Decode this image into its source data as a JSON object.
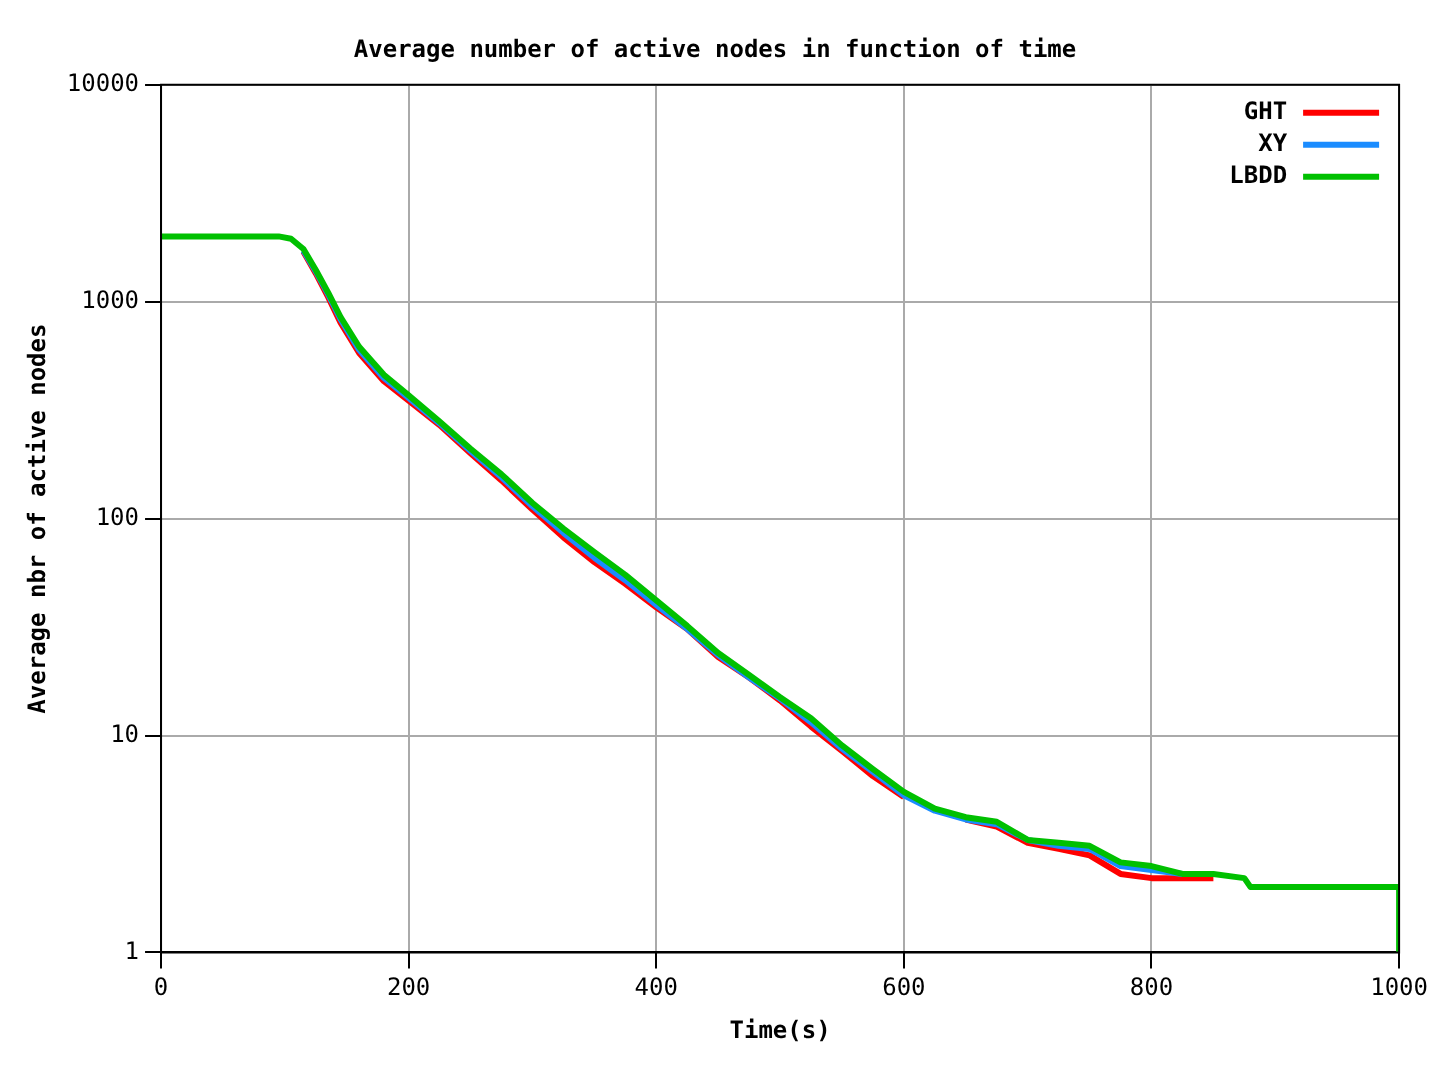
{
  "chart_data": {
    "type": "line",
    "title": "Average number of active nodes in function of time",
    "xlabel": "Time(s)",
    "ylabel": "Average nbr of active nodes",
    "x": [
      0,
      95,
      105,
      115,
      125,
      135,
      145,
      160,
      180,
      200,
      225,
      250,
      275,
      300,
      325,
      350,
      375,
      400,
      425,
      450,
      475,
      500,
      525,
      550,
      575,
      600,
      625,
      650,
      675,
      700,
      725,
      750,
      775,
      800,
      825,
      850,
      875,
      880,
      1000,
      1000
    ],
    "series": [
      {
        "name": "GHT",
        "color": "#ff0000",
        "values": [
          null,
          null,
          null,
          1700,
          1350,
          1050,
          800,
          580,
          430,
          350,
          270,
          200,
          150,
          110,
          82,
          63,
          50,
          39,
          31,
          23,
          18.5,
          14.5,
          11,
          8.5,
          6.5,
          5.2,
          null,
          4.1,
          3.8,
          3.2,
          3.0,
          2.8,
          2.3,
          2.2,
          2.2,
          2.2,
          null,
          null,
          null,
          null
        ]
      },
      {
        "name": "XY",
        "color": "#1a8cff",
        "values": [
          null,
          null,
          null,
          1720,
          1380,
          1080,
          830,
          600,
          445,
          360,
          275,
          205,
          155,
          114,
          86,
          66,
          52,
          40,
          31,
          23.5,
          18.5,
          14.8,
          11.5,
          8.7,
          6.8,
          5.3,
          4.5,
          4.1,
          3.9,
          3.3,
          3.1,
          3.0,
          2.5,
          2.4,
          2.3,
          null,
          null,
          null,
          null,
          null
        ]
      },
      {
        "name": "LBDD",
        "color": "#00c000",
        "values": [
          2000,
          2000,
          1950,
          1750,
          1400,
          1100,
          850,
          620,
          460,
          370,
          280,
          210,
          160,
          118,
          90,
          70,
          55,
          42,
          32,
          24,
          19,
          15,
          12,
          9,
          7,
          5.5,
          4.6,
          4.2,
          4,
          3.3,
          3.2,
          3.1,
          2.6,
          2.5,
          2.3,
          2.3,
          2.2,
          2,
          2,
          1
        ]
      }
    ],
    "xlim": [
      0,
      1000
    ],
    "xticks": [
      0,
      200,
      400,
      600,
      800,
      1000
    ],
    "ylim": [
      1,
      10000
    ],
    "yticks": [
      1,
      10,
      100,
      1000,
      10000
    ],
    "log": "y",
    "grid": true,
    "legend": "top right",
    "marker": "none",
    "line_style": "solid"
  }
}
